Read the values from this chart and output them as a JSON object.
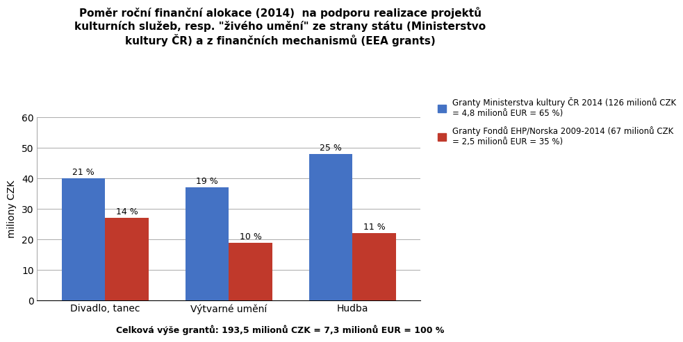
{
  "title_line1": "Poměr roční finanční alokace (2014)  na podporu realizace projektů",
  "title_line2": "kulturních služeb, resp. \"živého umění\" ze strany státu (Ministerstvo",
  "title_line3": "kultury ČR) a z finančních mechanismů (EEA grants)",
  "categories": [
    "Divadlo, tanec",
    "Výtvarné umění",
    "Hudba"
  ],
  "blue_values": [
    40,
    37,
    48
  ],
  "red_values": [
    27,
    19,
    22
  ],
  "blue_labels": [
    "21 %",
    "19 %",
    "25 %"
  ],
  "red_labels": [
    "14 %",
    "10 %",
    "11 %"
  ],
  "blue_color": "#4472C4",
  "red_color": "#C0392B",
  "ylabel": "miliony CZK",
  "ylim": [
    0,
    60
  ],
  "yticks": [
    0,
    10,
    20,
    30,
    40,
    50,
    60
  ],
  "legend1": "Granty Ministerstva kultury ČR 2014 (126 milionů CZK\n= 4,8 milionů EUR = 65 %)",
  "legend2": "Granty Fondů EHP/Norska 2009-2014 (67 milionů CZK\n= 2,5 milionů EUR = 35 %)",
  "footer": "Celková výše grantů: 193,5 milionů CZK = 7,3 milionů EUR = 100 %",
  "background_color": "#FFFFFF",
  "bar_width": 0.35
}
